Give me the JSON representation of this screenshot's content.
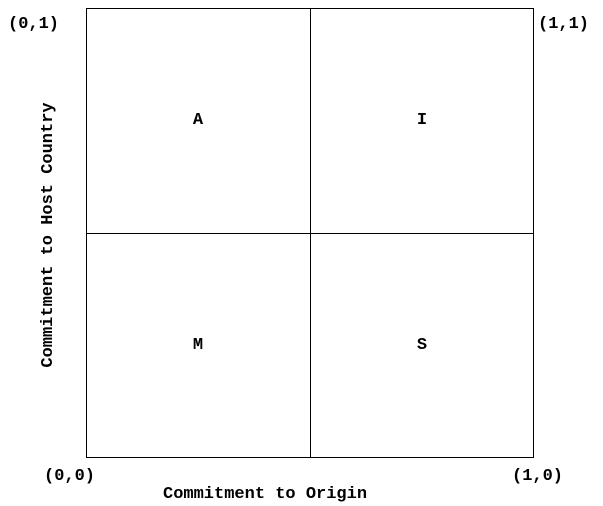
{
  "quadrants": {
    "top_left": "A",
    "top_right": "I",
    "bottom_left": "M",
    "bottom_right": "S"
  },
  "corners": {
    "top_left": "(0,1)",
    "top_right": "(1,1)",
    "bottom_left": "(0,0)",
    "bottom_right": "(1,0)"
  },
  "axes": {
    "x_label": "Commitment to Origin",
    "y_label": "Commitment to Host Country"
  }
}
